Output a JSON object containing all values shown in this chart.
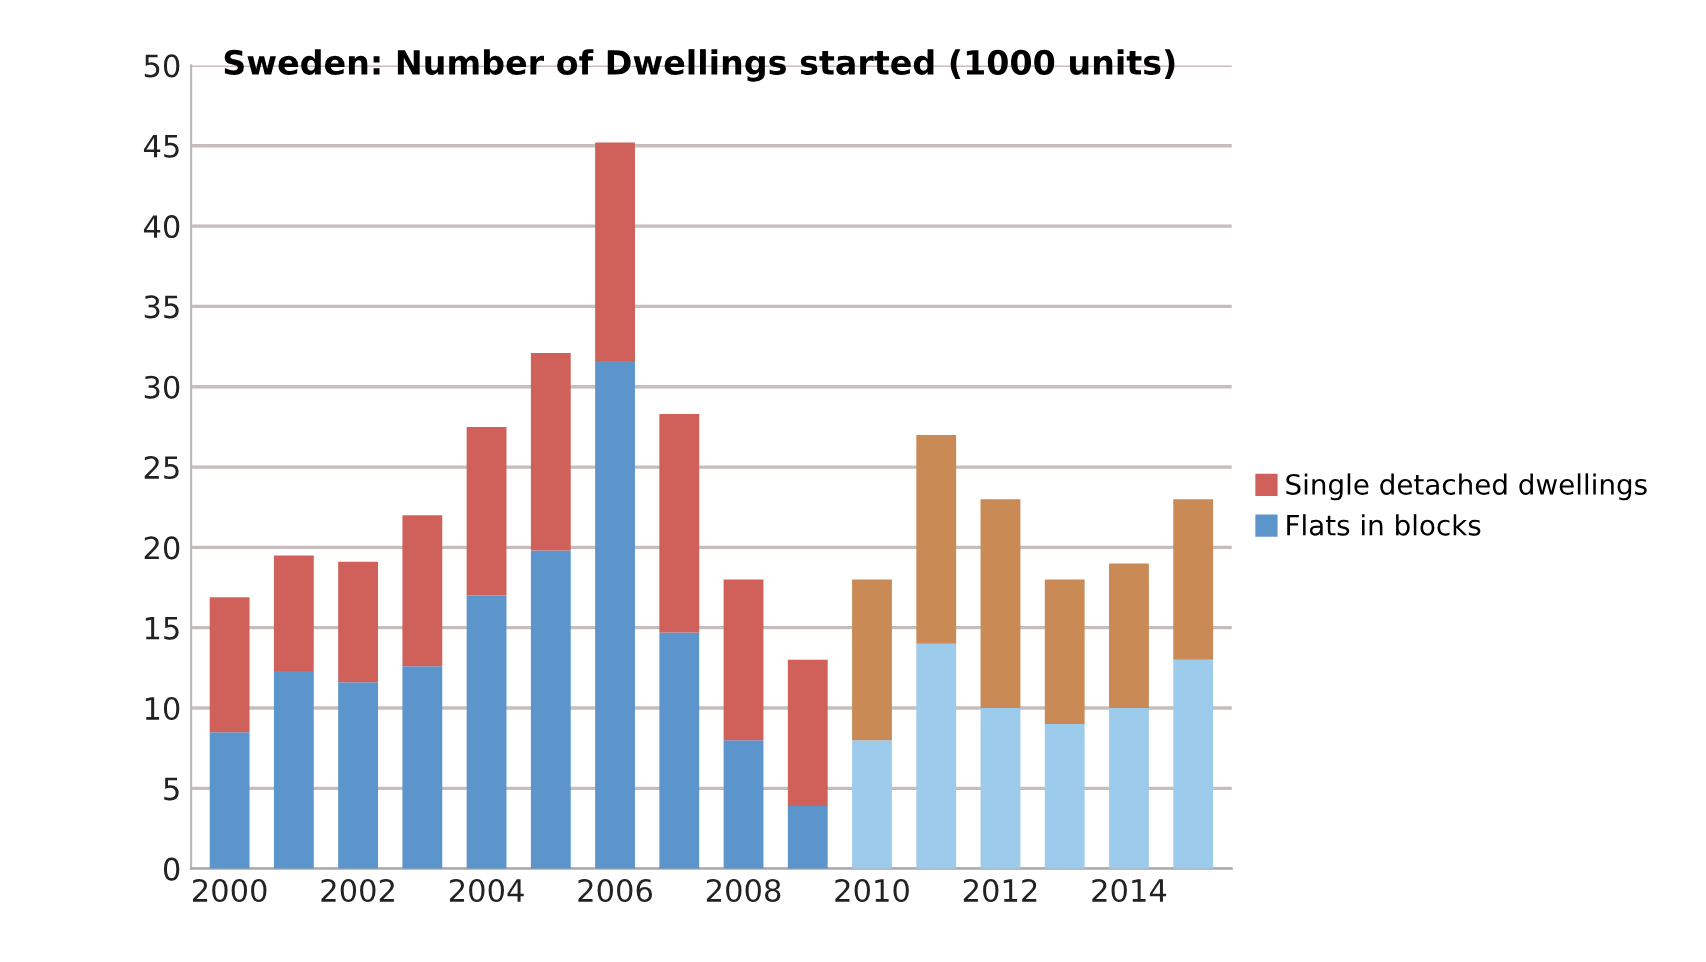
{
  "chart_data": {
    "type": "bar",
    "title": "Sweden: Number of Dwellings started (1000 units)",
    "categories": [
      "2000",
      null,
      "2002",
      null,
      "2004",
      null,
      "2006",
      null,
      "2008",
      null,
      "2010",
      null,
      "2012",
      null,
      "2014",
      null
    ],
    "stacked": true,
    "series": [
      {
        "name": "Flats in blocks",
        "color": "#5b95cc",
        "colors": [
          "#5b95cc",
          "#5b95cc",
          "#5b95cc",
          "#5b95cc",
          "#5b95cc",
          "#5b95cc",
          "#5b95cc",
          "#5b95cc",
          "#5b95cc",
          "#5b95cc",
          "#9ccbec",
          "#9ccbec",
          "#9ccbec",
          "#9ccbec",
          "#9ccbec",
          "#9ccbec"
        ],
        "values": [
          8.5,
          12.3,
          11.6,
          12.6,
          17,
          19.8,
          31.6,
          14.7,
          8,
          3.9,
          8,
          14,
          10,
          9,
          10,
          13
        ]
      },
      {
        "name": "Single detached dwellings",
        "color": "#d0605a",
        "colors": [
          "#d0605a",
          "#d0605a",
          "#d0605a",
          "#d0605a",
          "#d0605a",
          "#d0605a",
          "#d0605a",
          "#d0605a",
          "#d0605a",
          "#d0605a",
          "#c98a55",
          "#c98a55",
          "#c98a55",
          "#c98a55",
          "#c98a55",
          "#c98a55"
        ],
        "values": [
          8.4,
          7.2,
          7.5,
          9.4,
          10.5,
          12.3,
          13.6,
          13.6,
          10,
          9.1,
          10,
          13,
          13,
          9,
          9,
          10
        ]
      }
    ],
    "ylim": [
      0,
      50
    ],
    "yticks": [
      0,
      5,
      10,
      15,
      20,
      25,
      30,
      35,
      40,
      45,
      50
    ],
    "grid": "y",
    "legend": "right"
  }
}
